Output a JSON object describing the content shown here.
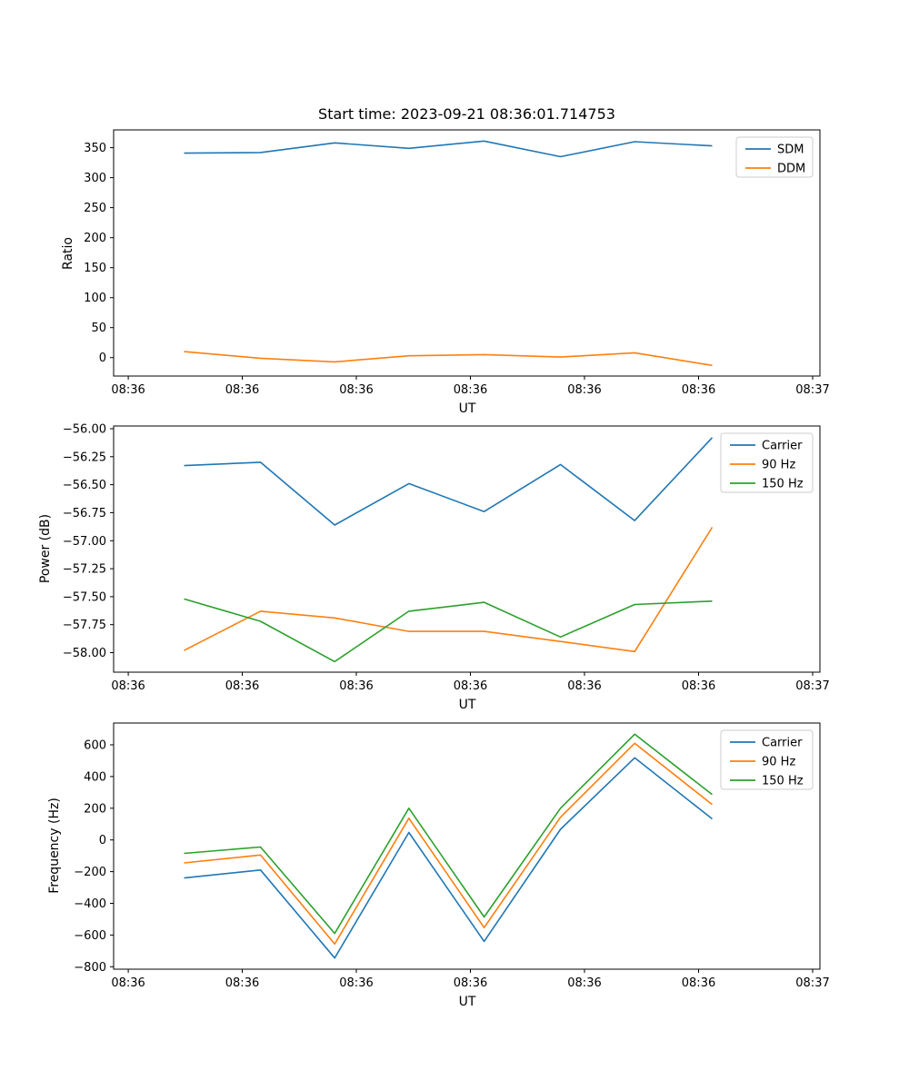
{
  "figure": {
    "title": "Start time: 2023-09-21 08:36:01.714753",
    "background": "#ffffff"
  },
  "colors": {
    "blue": "#1f77b4",
    "orange": "#ff7f0e",
    "green": "#2ca02c",
    "spine": "#000000",
    "legend_border": "#cccccc"
  },
  "chart_data": [
    {
      "type": "line",
      "title": "Start time: 2023-09-21 08:36:01.714753",
      "xlabel": "UT",
      "ylabel": "Ratio",
      "grid": false,
      "legend_position": "upper right",
      "x_tick_labels": [
        "08:36",
        "08:36",
        "08:36",
        "08:36",
        "08:36",
        "08:36",
        "08:37"
      ],
      "x_tick_seconds": [
        0,
        10,
        20,
        30,
        40,
        50,
        60
      ],
      "x_seconds": [
        4.9,
        11.6,
        18.1,
        24.6,
        31.2,
        37.9,
        44.4,
        51.2
      ],
      "ylim": [
        -30.7,
        379.7
      ],
      "yticks": [
        0,
        50,
        100,
        150,
        200,
        250,
        300,
        350
      ],
      "y_tick_decimals": 0,
      "series": [
        {
          "name": "SDM",
          "color": "#1f77b4",
          "values": [
            341,
            342,
            358,
            349,
            361,
            335,
            360,
            353
          ]
        },
        {
          "name": "DDM",
          "color": "#ff7f0e",
          "values": [
            10,
            -1,
            -7,
            3,
            5,
            1,
            8,
            -13
          ]
        }
      ]
    },
    {
      "type": "line",
      "title": "",
      "xlabel": "UT",
      "ylabel": "Power (dB)",
      "grid": false,
      "legend_position": "upper right",
      "x_tick_labels": [
        "08:36",
        "08:36",
        "08:36",
        "08:36",
        "08:36",
        "08:36",
        "08:37"
      ],
      "x_tick_seconds": [
        0,
        10,
        20,
        30,
        40,
        50,
        60
      ],
      "x_seconds": [
        4.9,
        11.6,
        18.1,
        24.6,
        31.2,
        37.9,
        44.4,
        51.2
      ],
      "ylim": [
        -58.174,
        -55.976
      ],
      "yticks": [
        -58.0,
        -57.75,
        -57.5,
        -57.25,
        -57.0,
        -56.75,
        -56.5,
        -56.25,
        -56.0
      ],
      "y_tick_decimals": 2,
      "series": [
        {
          "name": "Carrier",
          "color": "#1f77b4",
          "values": [
            -56.33,
            -56.3,
            -56.86,
            -56.49,
            -56.74,
            -56.32,
            -56.82,
            -56.08
          ]
        },
        {
          "name": "90 Hz",
          "color": "#ff7f0e",
          "values": [
            -57.98,
            -57.63,
            -57.69,
            -57.81,
            -57.81,
            -57.9,
            -57.99,
            -56.88
          ]
        },
        {
          "name": "150 Hz",
          "color": "#2ca02c",
          "values": [
            -57.52,
            -57.72,
            -58.08,
            -57.63,
            -57.55,
            -57.86,
            -57.57,
            -57.54
          ]
        }
      ]
    },
    {
      "type": "line",
      "title": "",
      "xlabel": "UT",
      "ylabel": "Frequency (Hz)",
      "grid": false,
      "legend_position": "upper right",
      "x_tick_labels": [
        "08:36",
        "08:36",
        "08:36",
        "08:36",
        "08:36",
        "08:36",
        "08:37"
      ],
      "x_tick_seconds": [
        0,
        10,
        20,
        30,
        40,
        50,
        60
      ],
      "x_seconds": [
        4.9,
        11.6,
        18.1,
        24.6,
        31.2,
        37.9,
        44.4,
        51.2
      ],
      "ylim": [
        -815.6,
        737.6
      ],
      "yticks": [
        -800,
        -600,
        -400,
        -200,
        0,
        200,
        400,
        600
      ],
      "y_tick_decimals": 0,
      "series": [
        {
          "name": "Carrier",
          "color": "#1f77b4",
          "values": [
            -240,
            -190,
            -745,
            47,
            -640,
            67,
            518,
            133
          ]
        },
        {
          "name": "90 Hz",
          "color": "#ff7f0e",
          "values": [
            -145,
            -95,
            -657,
            137,
            -553,
            143,
            610,
            223
          ]
        },
        {
          "name": "150 Hz",
          "color": "#2ca02c",
          "values": [
            -85,
            -45,
            -590,
            200,
            -486,
            200,
            667,
            286
          ]
        }
      ]
    }
  ]
}
